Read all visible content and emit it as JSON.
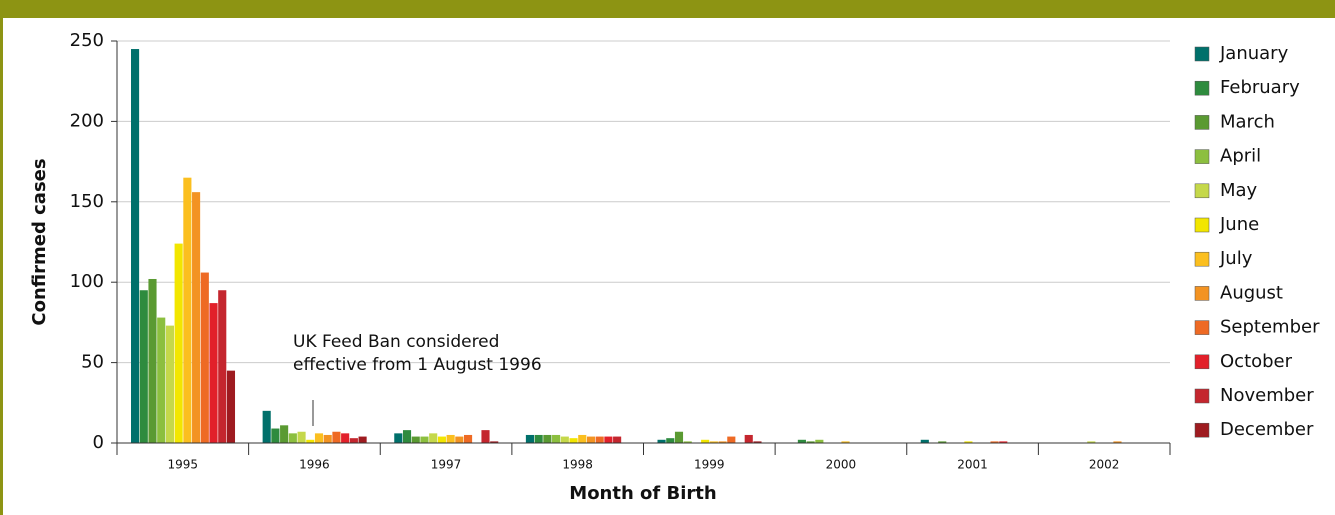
{
  "chart_data": {
    "type": "bar",
    "y_label": "Confirmed cases",
    "x_label": "Month of Birth",
    "annotation": [
      "UK Feed Ban considered",
      "effective from 1 August 1996"
    ],
    "categories": [
      "1995",
      "1996",
      "1997",
      "1998",
      "1999",
      "2000",
      "2001",
      "2002"
    ],
    "ylim": [
      0,
      250
    ],
    "yticks": [
      0,
      50,
      100,
      150,
      200,
      250
    ],
    "grid": true,
    "legend": "right",
    "series": [
      {
        "name": "January",
        "color": "#00706b",
        "values": [
          245,
          20,
          6,
          5,
          2,
          0,
          2,
          0
        ]
      },
      {
        "name": "February",
        "color": "#2e8b3e",
        "values": [
          95,
          9,
          8,
          5,
          3,
          2,
          0,
          0
        ]
      },
      {
        "name": "March",
        "color": "#5a9a32",
        "values": [
          102,
          11,
          4,
          5,
          7,
          1,
          1,
          0
        ]
      },
      {
        "name": "April",
        "color": "#8cbf3f",
        "values": [
          78,
          6,
          4,
          5,
          1,
          2,
          0,
          0
        ]
      },
      {
        "name": "May",
        "color": "#c5d84a",
        "values": [
          73,
          7,
          6,
          4,
          0,
          0,
          0,
          1
        ]
      },
      {
        "name": "June",
        "color": "#f2e600",
        "values": [
          124,
          2,
          4,
          3,
          2,
          0,
          1,
          0
        ]
      },
      {
        "name": "July",
        "color": "#fbbf1f",
        "values": [
          165,
          6,
          5,
          5,
          1,
          1,
          0,
          0
        ]
      },
      {
        "name": "August",
        "color": "#f39322",
        "values": [
          156,
          5,
          4,
          4,
          1,
          0,
          0,
          1
        ]
      },
      {
        "name": "September",
        "color": "#ee6a24",
        "values": [
          106,
          7,
          5,
          4,
          4,
          0,
          1,
          0
        ]
      },
      {
        "name": "October",
        "color": "#e2202a",
        "values": [
          87,
          6,
          0,
          4,
          0,
          0,
          1,
          0
        ]
      },
      {
        "name": "November",
        "color": "#c4262e",
        "values": [
          95,
          3,
          8,
          4,
          5,
          0,
          0,
          0
        ]
      },
      {
        "name": "December",
        "color": "#9e1b20",
        "values": [
          45,
          4,
          1,
          0,
          1,
          0,
          0,
          0
        ]
      }
    ]
  }
}
